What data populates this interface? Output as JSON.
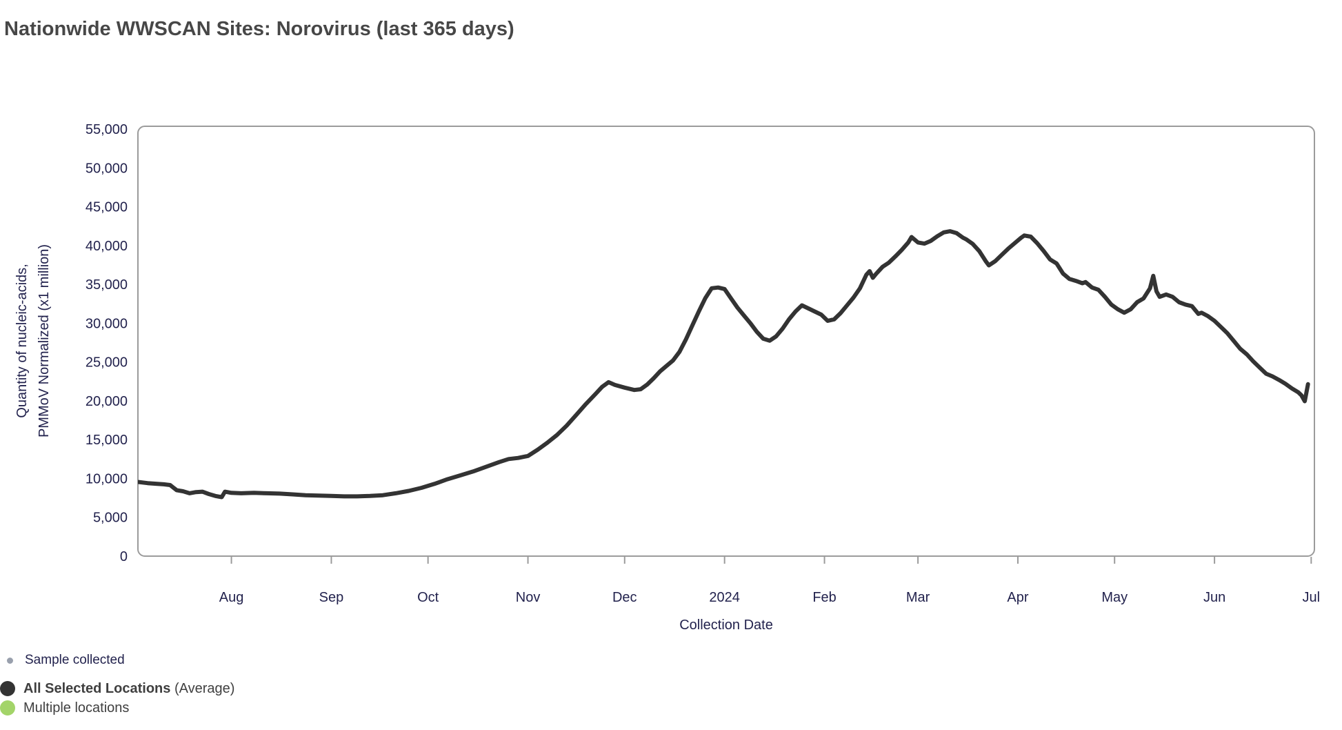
{
  "page_title": "Nationwide WWSCAN Sites: Norovirus (last 365 days)",
  "colors": {
    "line": "#333333",
    "plot_border": "#9b9b9b",
    "axis_text": "#22224d",
    "title_text": "#474747",
    "legend_text": "#3f3f3f",
    "sample_dot": "#99a0ad",
    "avg_dot": "#333333",
    "multi_dot": "#a3d469"
  },
  "y_axis": {
    "title_line1": "Quantity of nucleic-acids,",
    "title_line2": "PMMoV Normalized (x1 million)",
    "tick_labels": [
      "0",
      "5,000",
      "10,000",
      "15,000",
      "20,000",
      "25,000",
      "30,000",
      "35,000",
      "40,000",
      "45,000",
      "50,000",
      "55,000"
    ],
    "tick_values": [
      0,
      5000,
      10000,
      15000,
      20000,
      25000,
      30000,
      35000,
      40000,
      45000,
      50000,
      55000
    ]
  },
  "x_axis": {
    "title": "Collection Date",
    "ticks": [
      {
        "label": "Aug",
        "date": "2023-08-01"
      },
      {
        "label": "Sep",
        "date": "2023-09-01"
      },
      {
        "label": "Oct",
        "date": "2023-10-01"
      },
      {
        "label": "Nov",
        "date": "2023-11-01"
      },
      {
        "label": "Dec",
        "date": "2023-12-01"
      },
      {
        "label": "2024",
        "date": "2024-01-01"
      },
      {
        "label": "Feb",
        "date": "2024-02-01"
      },
      {
        "label": "Mar",
        "date": "2024-03-01"
      },
      {
        "label": "Apr",
        "date": "2024-04-01"
      },
      {
        "label": "May",
        "date": "2024-05-01"
      },
      {
        "label": "Jun",
        "date": "2024-06-01"
      },
      {
        "label": "Jul",
        "date": "2024-07-01"
      }
    ]
  },
  "legend": {
    "sample": {
      "label": "Sample collected"
    },
    "avg": {
      "label_bold": "All Selected Locations",
      "label_rest": " (Average)"
    },
    "multi": {
      "label": "Multiple locations"
    }
  },
  "chart_data": {
    "type": "line",
    "title": "Nationwide WWSCAN Sites: Norovirus (last 365 days)",
    "xlabel": "Collection Date",
    "ylabel": "Quantity of nucleic-acids, PMMoV Normalized (x1 million)",
    "ylim": [
      0,
      55360
    ],
    "x_range": [
      "2023-07-03",
      "2024-07-02"
    ],
    "grid": false,
    "legend_position": "bottom-left",
    "series": [
      {
        "name": "All Selected Locations (Average)",
        "points": [
          [
            "2023-07-03",
            9550
          ],
          [
            "2023-07-06",
            9400
          ],
          [
            "2023-07-09",
            9300
          ],
          [
            "2023-07-11",
            9250
          ],
          [
            "2023-07-13",
            9150
          ],
          [
            "2023-07-15",
            8500
          ],
          [
            "2023-07-17",
            8350
          ],
          [
            "2023-07-19",
            8100
          ],
          [
            "2023-07-21",
            8250
          ],
          [
            "2023-07-23",
            8300
          ],
          [
            "2023-07-25",
            8000
          ],
          [
            "2023-07-27",
            7750
          ],
          [
            "2023-07-29",
            7600
          ],
          [
            "2023-07-30",
            8300
          ],
          [
            "2023-08-01",
            8150
          ],
          [
            "2023-08-04",
            8100
          ],
          [
            "2023-08-08",
            8150
          ],
          [
            "2023-08-12",
            8100
          ],
          [
            "2023-08-16",
            8050
          ],
          [
            "2023-08-20",
            7950
          ],
          [
            "2023-08-24",
            7850
          ],
          [
            "2023-08-28",
            7800
          ],
          [
            "2023-09-01",
            7750
          ],
          [
            "2023-09-05",
            7700
          ],
          [
            "2023-09-09",
            7700
          ],
          [
            "2023-09-13",
            7750
          ],
          [
            "2023-09-17",
            7850
          ],
          [
            "2023-09-21",
            8100
          ],
          [
            "2023-09-25",
            8400
          ],
          [
            "2023-09-29",
            8800
          ],
          [
            "2023-10-03",
            9300
          ],
          [
            "2023-10-07",
            9900
          ],
          [
            "2023-10-11",
            10400
          ],
          [
            "2023-10-15",
            10900
          ],
          [
            "2023-10-19",
            11500
          ],
          [
            "2023-10-23",
            12100
          ],
          [
            "2023-10-26",
            12500
          ],
          [
            "2023-10-29",
            12650
          ],
          [
            "2023-11-01",
            12900
          ],
          [
            "2023-11-04",
            13700
          ],
          [
            "2023-11-07",
            14600
          ],
          [
            "2023-11-10",
            15600
          ],
          [
            "2023-11-13",
            16800
          ],
          [
            "2023-11-16",
            18200
          ],
          [
            "2023-11-19",
            19600
          ],
          [
            "2023-11-22",
            20900
          ],
          [
            "2023-11-24",
            21800
          ],
          [
            "2023-11-26",
            22400
          ],
          [
            "2023-11-28",
            22050
          ],
          [
            "2023-12-01",
            21700
          ],
          [
            "2023-12-04",
            21400
          ],
          [
            "2023-12-06",
            21500
          ],
          [
            "2023-12-08",
            22100
          ],
          [
            "2023-12-10",
            22900
          ],
          [
            "2023-12-12",
            23800
          ],
          [
            "2023-12-14",
            24500
          ],
          [
            "2023-12-16",
            25200
          ],
          [
            "2023-12-18",
            26300
          ],
          [
            "2023-12-20",
            27900
          ],
          [
            "2023-12-22",
            29700
          ],
          [
            "2023-12-24",
            31500
          ],
          [
            "2023-12-26",
            33200
          ],
          [
            "2023-12-28",
            34500
          ],
          [
            "2023-12-30",
            34600
          ],
          [
            "2024-01-01",
            34400
          ],
          [
            "2024-01-03",
            33200
          ],
          [
            "2024-01-05",
            32000
          ],
          [
            "2024-01-07",
            31000
          ],
          [
            "2024-01-09",
            30000
          ],
          [
            "2024-01-11",
            28900
          ],
          [
            "2024-01-13",
            28000
          ],
          [
            "2024-01-15",
            27750
          ],
          [
            "2024-01-17",
            28300
          ],
          [
            "2024-01-19",
            29300
          ],
          [
            "2024-01-21",
            30500
          ],
          [
            "2024-01-23",
            31500
          ],
          [
            "2024-01-25",
            32300
          ],
          [
            "2024-01-27",
            31900
          ],
          [
            "2024-01-29",
            31500
          ],
          [
            "2024-01-31",
            31100
          ],
          [
            "2024-02-02",
            30300
          ],
          [
            "2024-02-04",
            30500
          ],
          [
            "2024-02-06",
            31300
          ],
          [
            "2024-02-08",
            32300
          ],
          [
            "2024-02-10",
            33300
          ],
          [
            "2024-02-12",
            34500
          ],
          [
            "2024-02-14",
            36250
          ],
          [
            "2024-02-15",
            36700
          ],
          [
            "2024-02-16",
            35850
          ],
          [
            "2024-02-17",
            36350
          ],
          [
            "2024-02-19",
            37250
          ],
          [
            "2024-02-21",
            37800
          ],
          [
            "2024-02-23",
            38600
          ],
          [
            "2024-02-25",
            39450
          ],
          [
            "2024-02-27",
            40400
          ],
          [
            "2024-02-28",
            41100
          ],
          [
            "2024-03-01",
            40400
          ],
          [
            "2024-03-03",
            40250
          ],
          [
            "2024-03-05",
            40600
          ],
          [
            "2024-03-07",
            41200
          ],
          [
            "2024-03-09",
            41700
          ],
          [
            "2024-03-11",
            41850
          ],
          [
            "2024-03-13",
            41600
          ],
          [
            "2024-03-15",
            41000
          ],
          [
            "2024-03-16",
            40800
          ],
          [
            "2024-03-18",
            40200
          ],
          [
            "2024-03-20",
            39300
          ],
          [
            "2024-03-22",
            38000
          ],
          [
            "2024-03-23",
            37450
          ],
          [
            "2024-03-25",
            38000
          ],
          [
            "2024-03-27",
            38800
          ],
          [
            "2024-03-29",
            39600
          ],
          [
            "2024-03-31",
            40300
          ],
          [
            "2024-04-02",
            41000
          ],
          [
            "2024-04-03",
            41300
          ],
          [
            "2024-04-05",
            41150
          ],
          [
            "2024-04-07",
            40300
          ],
          [
            "2024-04-09",
            39300
          ],
          [
            "2024-04-11",
            38200
          ],
          [
            "2024-04-13",
            37700
          ],
          [
            "2024-04-15",
            36400
          ],
          [
            "2024-04-17",
            35700
          ],
          [
            "2024-04-19",
            35450
          ],
          [
            "2024-04-21",
            35150
          ],
          [
            "2024-04-22",
            35300
          ],
          [
            "2024-04-24",
            34600
          ],
          [
            "2024-04-26",
            34300
          ],
          [
            "2024-04-28",
            33400
          ],
          [
            "2024-04-30",
            32400
          ],
          [
            "2024-05-02",
            31800
          ],
          [
            "2024-05-04",
            31350
          ],
          [
            "2024-05-06",
            31800
          ],
          [
            "2024-05-08",
            32700
          ],
          [
            "2024-05-10",
            33200
          ],
          [
            "2024-05-12",
            34500
          ],
          [
            "2024-05-13",
            36100
          ],
          [
            "2024-05-14",
            34100
          ],
          [
            "2024-05-15",
            33400
          ],
          [
            "2024-05-17",
            33700
          ],
          [
            "2024-05-19",
            33400
          ],
          [
            "2024-05-21",
            32700
          ],
          [
            "2024-05-23",
            32400
          ],
          [
            "2024-05-25",
            32200
          ],
          [
            "2024-05-27",
            31200
          ],
          [
            "2024-05-28",
            31350
          ],
          [
            "2024-05-30",
            30900
          ],
          [
            "2024-06-01",
            30300
          ],
          [
            "2024-06-03",
            29500
          ],
          [
            "2024-06-05",
            28700
          ],
          [
            "2024-06-07",
            27700
          ],
          [
            "2024-06-09",
            26700
          ],
          [
            "2024-06-11",
            26000
          ],
          [
            "2024-06-13",
            25100
          ],
          [
            "2024-06-15",
            24300
          ],
          [
            "2024-06-17",
            23500
          ],
          [
            "2024-06-19",
            23150
          ],
          [
            "2024-06-21",
            22700
          ],
          [
            "2024-06-23",
            22200
          ],
          [
            "2024-06-25",
            21600
          ],
          [
            "2024-06-27",
            21100
          ],
          [
            "2024-06-28",
            20700
          ],
          [
            "2024-06-29",
            19950
          ],
          [
            "2024-06-30",
            22150
          ]
        ]
      }
    ]
  }
}
